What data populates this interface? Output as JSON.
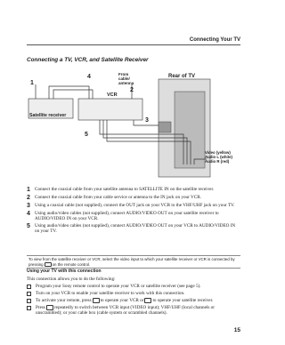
{
  "header": {
    "title": "Connecting Your TV"
  },
  "section_title": "Connecting a TV, VCR, and Satellite Receiver",
  "diagram": {
    "rear_of_tv": "Rear of TV",
    "from_cable": [
      "From",
      "cable/",
      "antenna"
    ],
    "vcr": "VCR",
    "satellite_receiver": "Satellite receiver",
    "callouts": [
      "1",
      "2",
      "3",
      "4",
      "5"
    ],
    "cable_labels": [
      "Video (yellow)",
      "Audio L (white)",
      "Audio R (red)"
    ]
  },
  "steps": [
    {
      "number": "1",
      "text": "Connect the coaxial cable from your satellite antenna to SATELLITE IN on the satellite receiver."
    },
    {
      "number": "2",
      "text": "Connect the coaxial cable from your cable service or antenna to the IN jack on your VCR."
    },
    {
      "number": "3",
      "text": "Using a coaxial cable (not supplied), connect the OUT jack on your VCR to the VHF/UHF jack on your TV."
    },
    {
      "number": "4",
      "text": "Using audio/video cables (not supplied), connect AUDIO/VIDEO OUT on your satellite receiver to AUDIO/VIDEO IN on your VCR."
    },
    {
      "number": "5",
      "text": "Using audio/video cables (not supplied), connect AUDIO/VIDEO OUT on your VCR to AUDIO/VIDEO IN on your TV."
    }
  ],
  "note": [
    "To view from the satellite receiver or VCR, select the video input to which your satellite receiver or VCR is connected by pressing",
    "on the remote control."
  ],
  "subheading": "Using your TV with this connection",
  "intro": "This connection allows you to do the following:",
  "bullets": [
    [
      "Program your Sony remote control to operate your VCR or satellite receiver (see page 5)."
    ],
    [
      "Turn on your VCR to enable your satellite receiver to work with this connection."
    ],
    [
      "To activate your remote, press",
      "to operate your VCR or",
      "to operate your satellite receiver."
    ],
    [
      "Press",
      "repeatedly to switch between VCR input (VIDEO input); VHF/UHF (local channels or unscrambled); or your cable box (cable system or scrambled channels)."
    ]
  ],
  "page_number": "15"
}
